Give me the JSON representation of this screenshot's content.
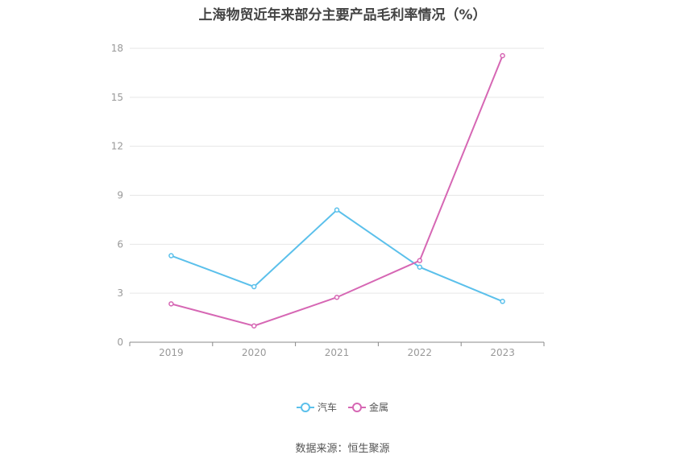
{
  "title": "上海物贸近年来部分主要产品毛利率情况（%）",
  "source": "数据来源：恒生聚源",
  "chart_data": {
    "type": "line",
    "x": [
      "2019",
      "2020",
      "2021",
      "2022",
      "2023"
    ],
    "series": [
      {
        "name": "汽车",
        "color": "#5bc0eb",
        "values": [
          5.3,
          3.4,
          8.1,
          4.6,
          2.5
        ]
      },
      {
        "name": "金属",
        "color": "#d667b4",
        "values": [
          2.35,
          1.0,
          2.75,
          5.0,
          17.55
        ]
      }
    ],
    "yticks": [
      0,
      3,
      6,
      9,
      12,
      15,
      18
    ],
    "ylim": [
      0,
      18
    ],
    "grid": true,
    "legend_position": "bottom"
  }
}
